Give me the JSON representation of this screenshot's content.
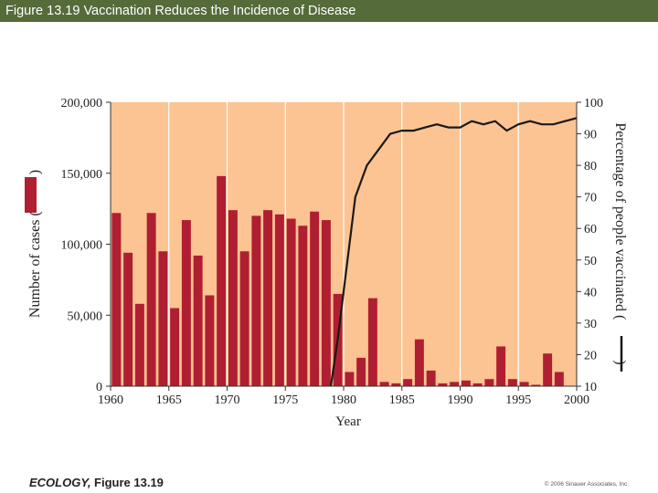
{
  "header": {
    "title": "Figure 13.19  Vaccination Reduces the Incidence of Disease"
  },
  "footer": {
    "book": "ECOLOGY,",
    "figure": " Figure 13.19",
    "copyright": "© 2006 Sinauer Associates, Inc."
  },
  "colors": {
    "header_bar": "#556b3a",
    "plot_background": "#fbc492",
    "bars": "#b01e32",
    "line": "#1a1a1a"
  },
  "chart_data": {
    "type": "bar",
    "xlabel": "Year",
    "ylabel_left": "Number of cases (",
    "ylabel_right": "Percentage of people vaccinated (",
    "ylabel_right_close": ")",
    "xlim": [
      1960,
      2000
    ],
    "ylim_left": [
      0,
      200000
    ],
    "ylim_right": [
      10,
      100
    ],
    "x_ticks": [
      1960,
      1965,
      1970,
      1975,
      1980,
      1985,
      1990,
      1995,
      2000
    ],
    "x_tick_labels": [
      "1960",
      "1965",
      "1970",
      "1975",
      "1980",
      "1985",
      "1990",
      "1995",
      "2000"
    ],
    "y_left_ticks": [
      0,
      50000,
      100000,
      150000,
      200000
    ],
    "y_left_tick_labels": [
      "0",
      "50,000",
      "100,000",
      "150,000",
      "200,000"
    ],
    "y_right_ticks": [
      10,
      20,
      30,
      40,
      50,
      60,
      70,
      80,
      90,
      100
    ],
    "y_right_tick_labels": [
      "10",
      "20",
      "30",
      "40",
      "50",
      "60",
      "70",
      "80",
      "90",
      "100"
    ],
    "grid": "vertical",
    "series": [
      {
        "kind": "bar",
        "axis": "left",
        "x": [
          1960,
          1961,
          1962,
          1963,
          1964,
          1965,
          1966,
          1967,
          1968,
          1969,
          1970,
          1971,
          1972,
          1973,
          1974,
          1975,
          1976,
          1977,
          1978,
          1979,
          1980,
          1981,
          1982,
          1983,
          1984,
          1985,
          1986,
          1987,
          1988,
          1989,
          1990,
          1991,
          1992,
          1993,
          1994,
          1995,
          1996,
          1997,
          1998,
          1999
        ],
        "values": [
          122000,
          94000,
          58000,
          122000,
          95000,
          55000,
          117000,
          92000,
          64000,
          148000,
          124000,
          95000,
          120000,
          124000,
          121000,
          118000,
          113000,
          123000,
          117000,
          65000,
          10000,
          20000,
          62000,
          3000,
          2000,
          5000,
          33000,
          11000,
          2000,
          3000,
          4000,
          2000,
          5000,
          28000,
          5000,
          3000,
          1000,
          23000,
          10000,
          0
        ]
      },
      {
        "kind": "line",
        "axis": "right",
        "x": [
          1978.9,
          1979.5,
          1980.0,
          1980.5,
          1981.0,
          1982.0,
          1983.0,
          1984.0,
          1985.0,
          1986.0,
          1987.0,
          1988.0,
          1989.0,
          1990.0,
          1991.0,
          1992.0,
          1993.0,
          1994.0,
          1995.0,
          1996.0,
          1997.0,
          1998.0,
          1999.0,
          2000.0
        ],
        "values": [
          10,
          25,
          40,
          55,
          70,
          80,
          85,
          90,
          91,
          91,
          92,
          93,
          92,
          92,
          94,
          93,
          94,
          91,
          93,
          94,
          93,
          93,
          94,
          95
        ]
      }
    ]
  }
}
